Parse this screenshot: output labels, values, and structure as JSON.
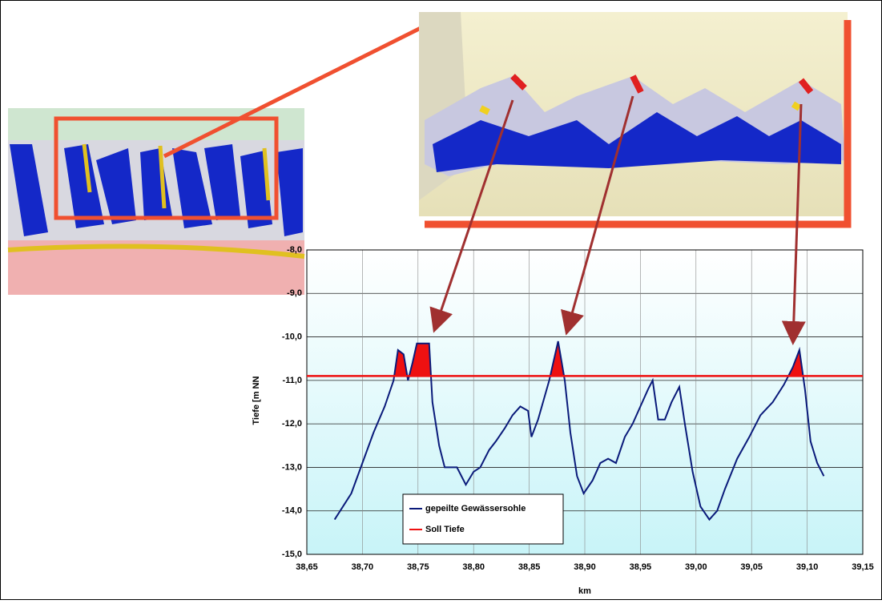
{
  "chart_data": {
    "type": "line",
    "x_label": "km",
    "y_label": "Tiefe  [m NN",
    "xlim": [
      38.65,
      39.15
    ],
    "ylim": [
      -15,
      -8
    ],
    "xticks": [
      {
        "value": 38.65,
        "label": "38,65"
      },
      {
        "value": 38.7,
        "label": "38,70"
      },
      {
        "value": 38.75,
        "label": "38,75"
      },
      {
        "value": 38.8,
        "label": "38,80"
      },
      {
        "value": 38.85,
        "label": "38,85"
      },
      {
        "value": 38.9,
        "label": "38,90"
      },
      {
        "value": 38.95,
        "label": "38,95"
      },
      {
        "value": 39.0,
        "label": "39,00"
      },
      {
        "value": 39.05,
        "label": "39,05"
      },
      {
        "value": 39.1,
        "label": "39,10"
      },
      {
        "value": 39.15,
        "label": "39,15"
      }
    ],
    "yticks": [
      {
        "value": -8,
        "label": "-8,0"
      },
      {
        "value": -9,
        "label": "-9,0"
      },
      {
        "value": -10,
        "label": "-10,0"
      },
      {
        "value": -11,
        "label": "-11,0"
      },
      {
        "value": -12,
        "label": "-12,0"
      },
      {
        "value": -13,
        "label": "-13,0"
      },
      {
        "value": -14,
        "label": "-14,0"
      },
      {
        "value": -15,
        "label": "-15,0"
      }
    ],
    "grid": true,
    "legend": "lower left",
    "x": [
      38.675,
      38.69,
      38.7,
      38.71,
      38.72,
      38.728,
      38.732,
      38.737,
      38.741,
      38.745,
      38.749,
      38.76,
      38.763,
      38.769,
      38.774,
      38.785,
      38.793,
      38.8,
      38.806,
      38.814,
      38.82,
      38.828,
      38.835,
      38.842,
      38.849,
      38.852,
      38.858,
      38.868,
      38.876,
      38.882,
      38.887,
      38.893,
      38.899,
      38.907,
      38.914,
      38.921,
      38.928,
      38.936,
      38.943,
      38.95,
      38.957,
      38.961,
      38.966,
      38.972,
      38.978,
      38.985,
      38.99,
      38.997,
      39.004,
      39.012,
      39.019,
      39.026,
      39.037,
      39.048,
      39.058,
      39.069,
      39.079,
      39.087,
      39.093,
      39.098,
      39.103,
      39.109,
      39.115
    ],
    "series": [
      {
        "name": "gepeilte Gewässersohle",
        "color": "#0a1a7a",
        "values": [
          -14.2,
          -13.6,
          -12.9,
          -12.2,
          -11.6,
          -11.0,
          -10.3,
          -10.4,
          -11.0,
          -10.6,
          -10.15,
          -10.15,
          -11.5,
          -12.5,
          -13.0,
          -13.0,
          -13.4,
          -13.1,
          -13.0,
          -12.6,
          -12.4,
          -12.1,
          -11.8,
          -11.6,
          -11.7,
          -12.3,
          -11.9,
          -11.0,
          -10.1,
          -11.0,
          -12.2,
          -13.2,
          -13.6,
          -13.3,
          -12.9,
          -12.8,
          -12.9,
          -12.3,
          -12.0,
          -11.6,
          -11.2,
          -11.0,
          -11.9,
          -11.9,
          -11.5,
          -11.15,
          -12.0,
          -13.1,
          -13.9,
          -14.2,
          -14.0,
          -13.5,
          -12.8,
          -12.3,
          -11.8,
          -11.5,
          -11.1,
          -10.7,
          -10.3,
          -11.2,
          -12.4,
          -12.9,
          -13.2
        ]
      },
      {
        "name": "Soll Tiefe",
        "color": "#ee1111",
        "x": [
          38.65,
          39.15
        ],
        "values": [
          -10.9,
          -10.9
        ]
      }
    ]
  }
}
